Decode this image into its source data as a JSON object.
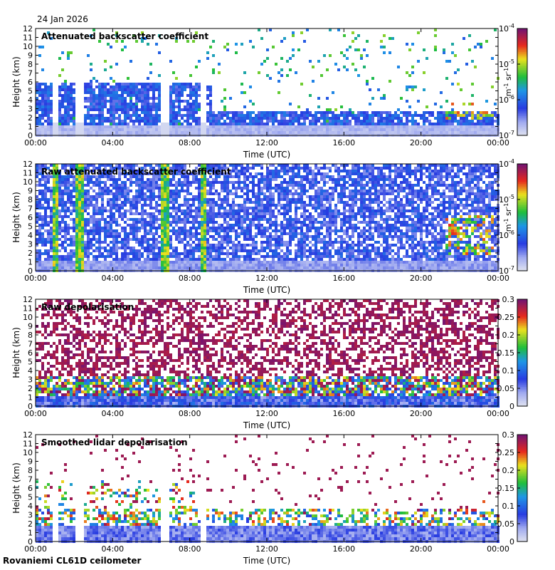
{
  "date_label": "24 Jan 2026",
  "footer_label": "Rovaniemi CL61D ceilometer",
  "colors": {
    "purple": "#7a1a6e",
    "red": "#e02020",
    "yellow": "#f0e020",
    "green": "#20c020",
    "blue": "#2040e0",
    "light_blue": "#b8c4f0",
    "gray": "#d8d8d8"
  },
  "chart_data": [
    {
      "type": "heatmap",
      "title": "Attenuated backscatter coefficient",
      "xlabel": "Time (UTC)",
      "ylabel": "Height (km)",
      "x_ticks": [
        "00:00",
        "04:00",
        "08:00",
        "12:00",
        "16:00",
        "20:00",
        "00:00"
      ],
      "y_ticks": [
        "0",
        "1",
        "2",
        "3",
        "4",
        "5",
        "6",
        "7",
        "8",
        "9",
        "10",
        "11",
        "12"
      ],
      "ylim": [
        0,
        12
      ],
      "colorbar": {
        "scale": "log",
        "ticks": [
          "10-7",
          "10-6",
          "10-5",
          "10-4"
        ],
        "tick_base": "10",
        "tick_exponents": [
          "-7",
          "-6",
          "-5",
          "-4"
        ],
        "unit_label": "m-1 sr-1",
        "unit_m": "m",
        "unit_m_exp": "-1",
        "unit_sr": "sr",
        "unit_sr_exp": "-1"
      }
    },
    {
      "type": "heatmap",
      "title": "Raw attenuated backscatter coefficient",
      "xlabel": "Time (UTC)",
      "ylabel": "Height (km)",
      "x_ticks": [
        "00:00",
        "04:00",
        "08:00",
        "12:00",
        "16:00",
        "20:00",
        "00:00"
      ],
      "y_ticks": [
        "0",
        "1",
        "2",
        "3",
        "4",
        "5",
        "6",
        "7",
        "8",
        "9",
        "10",
        "11",
        "12"
      ],
      "ylim": [
        0,
        12
      ],
      "colorbar": {
        "scale": "log",
        "ticks": [
          "10-7",
          "10-6",
          "10-5",
          "10-4"
        ],
        "tick_base": "10",
        "tick_exponents": [
          "-7",
          "-6",
          "-5",
          "-4"
        ],
        "unit_label": "m-1 sr-1",
        "unit_m": "m",
        "unit_m_exp": "-1",
        "unit_sr": "sr",
        "unit_sr_exp": "-1"
      }
    },
    {
      "type": "heatmap",
      "title": "Raw depolarisation",
      "xlabel": "Time (UTC)",
      "ylabel": "Height (km)",
      "x_ticks": [
        "00:00",
        "04:00",
        "08:00",
        "12:00",
        "16:00",
        "20:00",
        "00:00"
      ],
      "y_ticks": [
        "0",
        "1",
        "2",
        "3",
        "4",
        "5",
        "6",
        "7",
        "8",
        "9",
        "10",
        "11",
        "12"
      ],
      "ylim": [
        0,
        12
      ],
      "colorbar": {
        "scale": "linear",
        "ticks": [
          "0",
          "0.05",
          "0.1",
          "0.15",
          "0.2",
          "0.25",
          "0.3"
        ],
        "range": [
          0,
          0.3
        ]
      }
    },
    {
      "type": "heatmap",
      "title": "Smoothed lidar depolarisation",
      "xlabel": "Time (UTC)",
      "ylabel": "Height (km)",
      "x_ticks": [
        "00:00",
        "04:00",
        "08:00",
        "12:00",
        "16:00",
        "20:00",
        "00:00"
      ],
      "y_ticks": [
        "0",
        "1",
        "2",
        "3",
        "4",
        "5",
        "6",
        "7",
        "8",
        "9",
        "10",
        "11",
        "12"
      ],
      "ylim": [
        0,
        12
      ],
      "colorbar": {
        "scale": "linear",
        "ticks": [
          "0",
          "0.05",
          "0.1",
          "0.15",
          "0.2",
          "0.25",
          "0.3"
        ],
        "range": [
          0,
          0.3
        ]
      }
    }
  ]
}
